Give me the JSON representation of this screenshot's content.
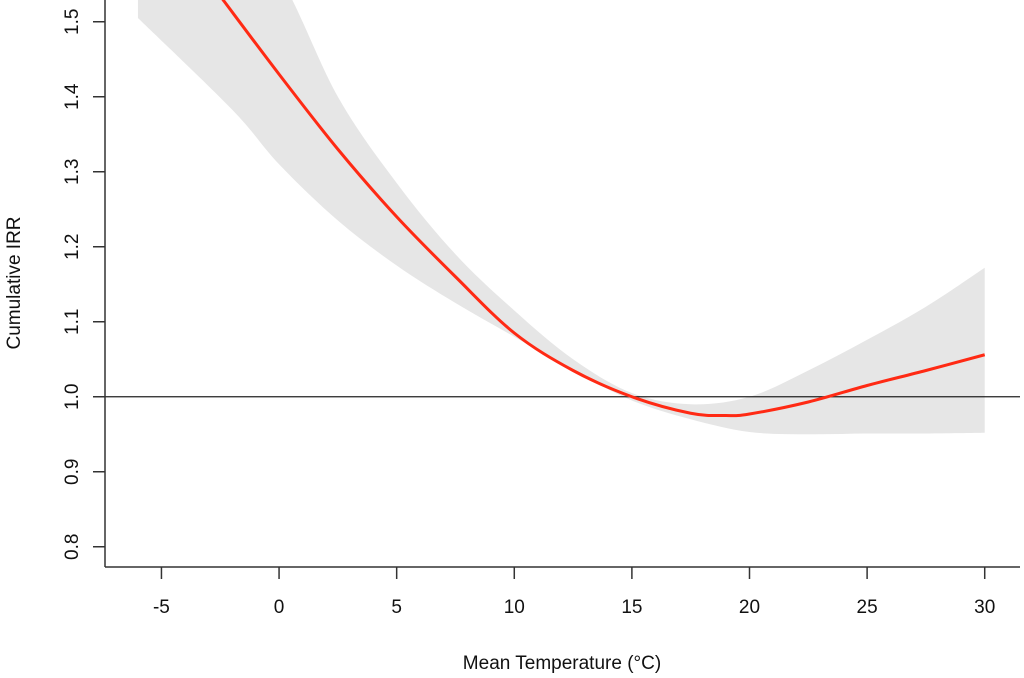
{
  "chart_data": {
    "type": "line",
    "title": "",
    "xlabel": "Mean Temperature (°C)",
    "ylabel": "Cumulative IRR",
    "xlim": [
      -7.4,
      31.5
    ],
    "ylim": [
      0.773,
      1.529
    ],
    "xticks": [
      -5,
      0,
      5,
      10,
      15,
      20,
      25,
      30
    ],
    "xtick_labels": [
      "-5",
      "0",
      "5",
      "10",
      "15",
      "20",
      "25",
      "30"
    ],
    "yticks": [
      0.8,
      0.9,
      1.0,
      1.1,
      1.2,
      1.3,
      1.4,
      1.5
    ],
    "ytick_labels": [
      "0.8",
      "0.9",
      "1.0",
      "1.1",
      "1.2",
      "1.3",
      "1.4",
      "1.5"
    ],
    "reference_line": 1.0,
    "grid": false,
    "colors": {
      "line": "#ff2a14",
      "band": "#e6e6e6",
      "axis": "#333333"
    },
    "series": [
      {
        "name": "Cumulative IRR",
        "x": [
          -2.4,
          0,
          2.5,
          5,
          7.5,
          10,
          12.5,
          15,
          17.5,
          19,
          20,
          22.5,
          25,
          27.5,
          30
        ],
        "values": [
          1.53,
          1.43,
          1.33,
          1.24,
          1.16,
          1.085,
          1.035,
          1.0,
          0.978,
          0.975,
          0.977,
          0.993,
          1.015,
          1.035,
          1.056
        ]
      }
    ],
    "confidence_band": {
      "x": [
        -6,
        -2,
        0,
        2.5,
        5,
        7.5,
        10,
        12.5,
        15,
        17.5,
        20,
        22.5,
        25,
        27.5,
        30
      ],
      "upper": [
        1.6,
        1.6,
        1.56,
        1.4,
        1.285,
        1.19,
        1.115,
        1.05,
        1.005,
        0.99,
        1.0,
        1.035,
        1.076,
        1.12,
        1.172
      ],
      "lower": [
        1.505,
        1.383,
        1.31,
        1.235,
        1.175,
        1.125,
        1.08,
        1.035,
        0.995,
        0.97,
        0.953,
        0.95,
        0.951,
        0.951,
        0.952
      ]
    }
  }
}
